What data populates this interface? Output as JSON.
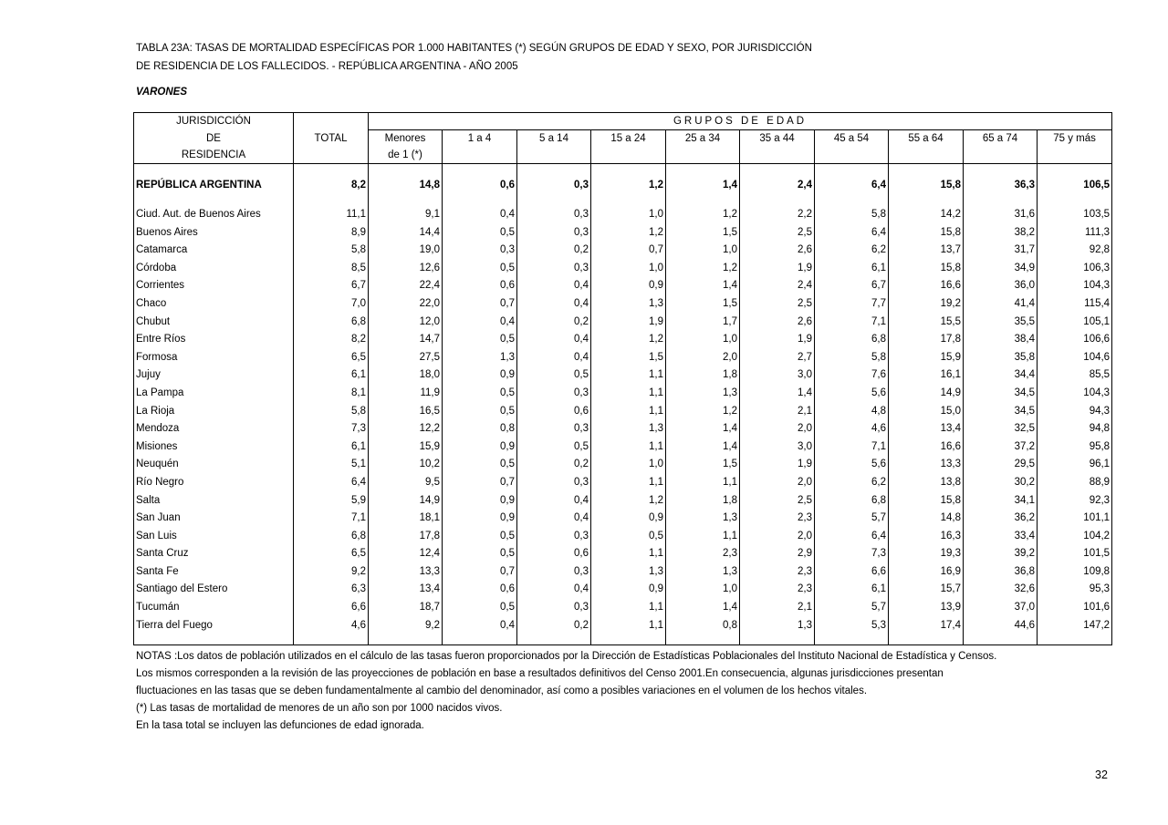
{
  "title_line1": "TABLA 23A: TASAS DE MORTALIDAD ESPECÍFICAS POR 1.000 HABITANTES (*) SEGÚN GRUPOS DE EDAD Y SEXO, POR JURISDICCIÓN",
  "title_line2": "DE RESIDENCIA DE LOS FALLECIDOS. - REPÚBLICA ARGENTINA - AÑO  2005",
  "subtitle": "VARONES",
  "table": {
    "header": {
      "jurisdiccion": [
        "JURISDICCIÓN",
        "DE",
        "RESIDENCIA"
      ],
      "total": "TOTAL",
      "grupos": "GRUPOS DE EDAD",
      "menores": [
        "Menores",
        "de 1 (*)"
      ],
      "age_groups": [
        "1 a 4",
        "5 a 14",
        "15 a 24",
        "25 a 34",
        "35 a 44",
        "45 a 54",
        "55 a 64",
        "65 a 74",
        "75 y más"
      ]
    },
    "national": [
      "REPÚBLICA ARGENTINA",
      "8,2",
      "14,8",
      "0,6",
      "0,3",
      "1,2",
      "1,4",
      "2,4",
      "6,4",
      "15,8",
      "36,3",
      "106,5"
    ],
    "rows": [
      [
        "Ciud. Aut. de  Buenos Aires",
        "11,1",
        "9,1",
        "0,4",
        "0,3",
        "1,0",
        "1,2",
        "2,2",
        "5,8",
        "14,2",
        "31,6",
        "103,5"
      ],
      [
        "Buenos Aires",
        "8,9",
        "14,4",
        "0,5",
        "0,3",
        "1,2",
        "1,5",
        "2,5",
        "6,4",
        "15,8",
        "38,2",
        "111,3"
      ],
      [
        "Catamarca",
        "5,8",
        "19,0",
        "0,3",
        "0,2",
        "0,7",
        "1,0",
        "2,6",
        "6,2",
        "13,7",
        "31,7",
        "92,8"
      ],
      [
        "Córdoba",
        "8,5",
        "12,6",
        "0,5",
        "0,3",
        "1,0",
        "1,2",
        "1,9",
        "6,1",
        "15,8",
        "34,9",
        "106,3"
      ],
      [
        "Corrientes",
        "6,7",
        "22,4",
        "0,6",
        "0,4",
        "0,9",
        "1,4",
        "2,4",
        "6,7",
        "16,6",
        "36,0",
        "104,3"
      ],
      [
        "Chaco",
        "7,0",
        "22,0",
        "0,7",
        "0,4",
        "1,3",
        "1,5",
        "2,5",
        "7,7",
        "19,2",
        "41,4",
        "115,4"
      ],
      [
        "Chubut",
        "6,8",
        "12,0",
        "0,4",
        "0,2",
        "1,9",
        "1,7",
        "2,6",
        "7,1",
        "15,5",
        "35,5",
        "105,1"
      ],
      [
        "Entre Ríos",
        "8,2",
        "14,7",
        "0,5",
        "0,4",
        "1,2",
        "1,0",
        "1,9",
        "6,8",
        "17,8",
        "38,4",
        "106,6"
      ],
      [
        "Formosa",
        "6,5",
        "27,5",
        "1,3",
        "0,4",
        "1,5",
        "2,0",
        "2,7",
        "5,8",
        "15,9",
        "35,8",
        "104,6"
      ],
      [
        "Jujuy",
        "6,1",
        "18,0",
        "0,9",
        "0,5",
        "1,1",
        "1,8",
        "3,0",
        "7,6",
        "16,1",
        "34,4",
        "85,5"
      ],
      [
        "La Pampa",
        "8,1",
        "11,9",
        "0,5",
        "0,3",
        "1,1",
        "1,3",
        "1,4",
        "5,6",
        "14,9",
        "34,5",
        "104,3"
      ],
      [
        "La Rioja",
        "5,8",
        "16,5",
        "0,5",
        "0,6",
        "1,1",
        "1,2",
        "2,1",
        "4,8",
        "15,0",
        "34,5",
        "94,3"
      ],
      [
        "Mendoza",
        "7,3",
        "12,2",
        "0,8",
        "0,3",
        "1,3",
        "1,4",
        "2,0",
        "4,6",
        "13,4",
        "32,5",
        "94,8"
      ],
      [
        "Misiones",
        "6,1",
        "15,9",
        "0,9",
        "0,5",
        "1,1",
        "1,4",
        "3,0",
        "7,1",
        "16,6",
        "37,2",
        "95,8"
      ],
      [
        "Neuquén",
        "5,1",
        "10,2",
        "0,5",
        "0,2",
        "1,0",
        "1,5",
        "1,9",
        "5,6",
        "13,3",
        "29,5",
        "96,1"
      ],
      [
        "Río Negro",
        "6,4",
        "9,5",
        "0,7",
        "0,3",
        "1,1",
        "1,1",
        "2,0",
        "6,2",
        "13,8",
        "30,2",
        "88,9"
      ],
      [
        "Salta",
        "5,9",
        "14,9",
        "0,9",
        "0,4",
        "1,2",
        "1,8",
        "2,5",
        "6,8",
        "15,8",
        "34,1",
        "92,3"
      ],
      [
        "San Juan",
        "7,1",
        "18,1",
        "0,9",
        "0,4",
        "0,9",
        "1,3",
        "2,3",
        "5,7",
        "14,8",
        "36,2",
        "101,1"
      ],
      [
        "San Luis",
        "6,8",
        "17,8",
        "0,5",
        "0,3",
        "0,5",
        "1,1",
        "2,0",
        "6,4",
        "16,3",
        "33,4",
        "104,2"
      ],
      [
        "Santa Cruz",
        "6,5",
        "12,4",
        "0,5",
        "0,6",
        "1,1",
        "2,3",
        "2,9",
        "7,3",
        "19,3",
        "39,2",
        "101,5"
      ],
      [
        "Santa Fe",
        "9,2",
        "13,3",
        "0,7",
        "0,3",
        "1,3",
        "1,3",
        "2,3",
        "6,6",
        "16,9",
        "36,8",
        "109,8"
      ],
      [
        "Santiago del Estero",
        "6,3",
        "13,4",
        "0,6",
        "0,4",
        "0,9",
        "1,0",
        "2,3",
        "6,1",
        "15,7",
        "32,6",
        "95,3"
      ],
      [
        "Tucumán",
        "6,6",
        "18,7",
        "0,5",
        "0,3",
        "1,1",
        "1,4",
        "2,1",
        "5,7",
        "13,9",
        "37,0",
        "101,6"
      ],
      [
        "Tierra del Fuego",
        "4,6",
        "9,2",
        "0,4",
        "0,2",
        "1,1",
        "0,8",
        "1,3",
        "5,3",
        "17,4",
        "44,6",
        "147,2"
      ]
    ]
  },
  "notes": [
    "NOTAS :Los datos de población utilizados en el cálculo de las tasas fueron proporcionados por la Dirección de Estadísticas Poblacionales del Instituto Nacional de Estadística y Censos.",
    "Los mismos corresponden a la revisión de las proyecciones de población en base a resultados definitivos del Censo 2001.En consecuencia, algunas jurisdicciones presentan",
    "fluctuaciones en las tasas que se deben fundamentalmente al cambio del denominador, así como a posibles variaciones en el volumen de los hechos vitales.",
    "(*) Las tasas de mortalidad de menores de un año son por 1000 nacidos vivos.",
    "En la tasa total se incluyen las defunciones de edad ignorada."
  ],
  "page_number": "32"
}
